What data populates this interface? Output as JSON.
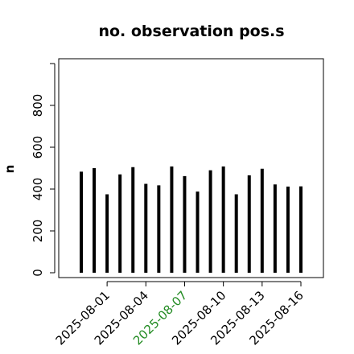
{
  "chart_data": {
    "type": "bar",
    "title": "no. observation pos.s",
    "xlabel": "",
    "ylabel": "n",
    "ylim": [
      0,
      1000
    ],
    "yticks": [
      0,
      200,
      400,
      600,
      800
    ],
    "x_tick_labels": [
      {
        "label": "2025-08-01",
        "color": "#000000"
      },
      {
        "label": "2025-08-04",
        "color": "#000000"
      },
      {
        "label": "2025-08-07",
        "color": "#228B22"
      },
      {
        "label": "2025-08-10",
        "color": "#000000"
      },
      {
        "label": "2025-08-13",
        "color": "#000000"
      },
      {
        "label": "2025-08-16",
        "color": "#000000"
      }
    ],
    "categories": [
      "2025-07-30",
      "2025-07-31",
      "2025-08-01",
      "2025-08-02",
      "2025-08-03",
      "2025-08-04",
      "2025-08-05",
      "2025-08-06",
      "2025-08-07",
      "2025-08-08",
      "2025-08-09",
      "2025-08-10",
      "2025-08-11",
      "2025-08-12",
      "2025-08-13",
      "2025-08-14",
      "2025-08-15",
      "2025-08-16"
    ],
    "values": [
      483,
      500,
      375,
      470,
      505,
      425,
      418,
      508,
      462,
      388,
      490,
      508,
      375,
      466,
      497,
      422,
      412,
      413
    ],
    "bar_color": "#000000",
    "grid": false
  }
}
